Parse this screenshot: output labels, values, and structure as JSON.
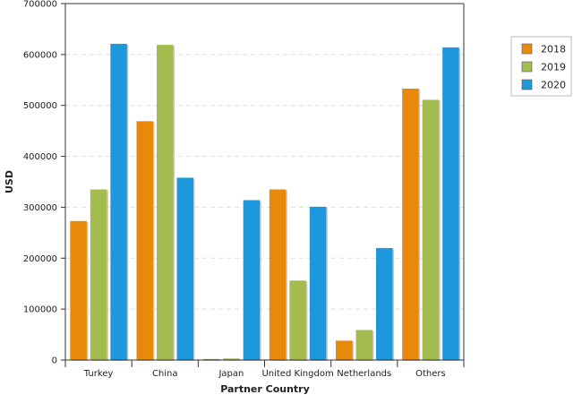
{
  "chart_data": {
    "type": "bar",
    "title": "",
    "xlabel": "Partner Country",
    "ylabel": "USD",
    "ylim": [
      0,
      700000
    ],
    "yticks": [
      0,
      100000,
      200000,
      300000,
      400000,
      500000,
      600000,
      700000
    ],
    "grid": true,
    "legend_position": "top-right",
    "categories": [
      "Turkey",
      "China",
      "Japan",
      "United Kingdom",
      "Netherlands",
      "Others"
    ],
    "series": [
      {
        "name": "2018",
        "color": "#E8890B",
        "values": [
          273000,
          469000,
          2000,
          335000,
          38000,
          533000
        ]
      },
      {
        "name": "2019",
        "color": "#A4BC4F",
        "values": [
          335000,
          619000,
          3000,
          156000,
          59000,
          511000
        ]
      },
      {
        "name": "2020",
        "color": "#1E98DD",
        "values": [
          621000,
          358000,
          314000,
          301000,
          220000,
          614000
        ]
      }
    ]
  }
}
